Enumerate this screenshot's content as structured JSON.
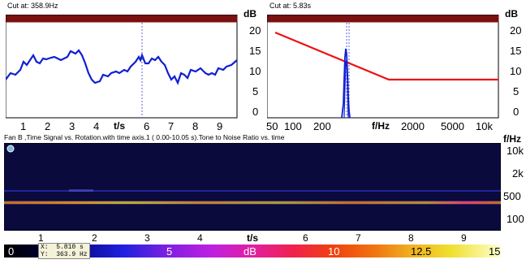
{
  "left_panel": {
    "cut_label": "Cut at: 358.9Hz",
    "y_unit": "dB",
    "y_ticks": [
      "20",
      "15",
      "10",
      "5",
      "0"
    ],
    "x_ticks": [
      "1",
      "2",
      "3",
      "4",
      "6",
      "7",
      "8",
      "9"
    ],
    "x_unit": "t/s"
  },
  "right_panel": {
    "cut_label": "Cut at: 5.83s",
    "y_unit": "dB",
    "y_ticks": [
      "20",
      "15",
      "10",
      "5",
      "0"
    ],
    "x_ticks": [
      "50",
      "100",
      "200",
      "2000",
      "5000",
      "10k"
    ],
    "x_unit": "f/Hz"
  },
  "spectrogram": {
    "caption": "Fan B ,Time Signal vs. Rotation.with time axis.1 ( 0.00-10.05 s).Tone to Noise Ratio vs. time",
    "y_unit": "f/Hz",
    "y_ticks": [
      "10k",
      "2k",
      "500",
      "100"
    ],
    "x_ticks": [
      "1",
      "2",
      "3",
      "4",
      "6",
      "7",
      "8",
      "9"
    ],
    "x_unit": "t/s"
  },
  "cursor_readout": {
    "x_text": "X:  5.810 s",
    "y_text": "Y:  363.9 Hz"
  },
  "colorbar": {
    "labels": [
      "0",
      "5",
      "dB",
      "10",
      "12.5",
      "15"
    ]
  },
  "colors": {
    "header_bar": "#7a1010",
    "trace_blue": "#1020d0",
    "trace_red": "#ee1111",
    "spectrogram_bg": "#0a0a3c"
  }
}
